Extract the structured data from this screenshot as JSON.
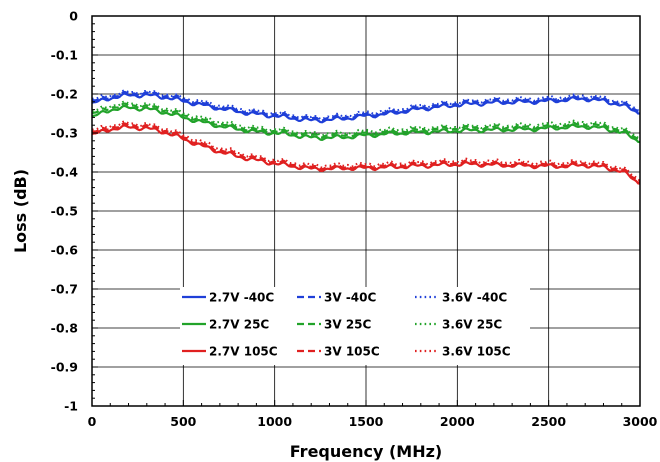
{
  "chart_data": {
    "type": "line",
    "xlabel": "Frequency (MHz)",
    "ylabel": "Loss (dB)",
    "xlim": [
      0,
      3000
    ],
    "ylim": [
      -1,
      0
    ],
    "xticks": [
      0,
      500,
      1000,
      1500,
      2000,
      2500,
      3000
    ],
    "yticks": [
      0,
      -0.1,
      -0.2,
      -0.3,
      -0.4,
      -0.5,
      -0.6,
      -0.7,
      -0.8,
      -0.9,
      -1
    ],
    "ytick_labels": [
      "0",
      "-0.1",
      "-0.2",
      "-0.3",
      "-0.4",
      "-0.5",
      "-0.6",
      "-0.7",
      "-0.8",
      "-0.9",
      "-1"
    ],
    "grid": true,
    "legend_position": "lower-center",
    "x": [
      0,
      100,
      200,
      300,
      400,
      500,
      600,
      700,
      800,
      900,
      1000,
      1100,
      1200,
      1300,
      1400,
      1500,
      1600,
      1700,
      1800,
      1900,
      2000,
      2100,
      2200,
      2300,
      2400,
      2500,
      2600,
      2700,
      2800,
      2900,
      3000
    ],
    "series": [
      {
        "name": "2.7V -40C",
        "color": "#1f3fd8",
        "dash": "solid",
        "values": [
          -0.225,
          -0.21,
          -0.203,
          -0.203,
          -0.208,
          -0.218,
          -0.228,
          -0.237,
          -0.245,
          -0.252,
          -0.256,
          -0.262,
          -0.268,
          -0.266,
          -0.262,
          -0.256,
          -0.252,
          -0.245,
          -0.238,
          -0.233,
          -0.228,
          -0.225,
          -0.222,
          -0.221,
          -0.22,
          -0.218,
          -0.215,
          -0.212,
          -0.218,
          -0.228,
          -0.25
        ]
      },
      {
        "name": "3V -40C",
        "color": "#1f3fd8",
        "dash": "dash",
        "values": [
          -0.22,
          -0.206,
          -0.199,
          -0.199,
          -0.204,
          -0.214,
          -0.224,
          -0.233,
          -0.241,
          -0.248,
          -0.252,
          -0.258,
          -0.264,
          -0.262,
          -0.258,
          -0.252,
          -0.248,
          -0.241,
          -0.234,
          -0.229,
          -0.224,
          -0.221,
          -0.218,
          -0.217,
          -0.216,
          -0.214,
          -0.211,
          -0.208,
          -0.214,
          -0.224,
          -0.246
        ]
      },
      {
        "name": "3.6V -40C",
        "color": "#1f3fd8",
        "dash": "dot",
        "values": [
          -0.215,
          -0.202,
          -0.195,
          -0.195,
          -0.2,
          -0.21,
          -0.22,
          -0.229,
          -0.237,
          -0.244,
          -0.248,
          -0.254,
          -0.26,
          -0.258,
          -0.254,
          -0.248,
          -0.244,
          -0.237,
          -0.23,
          -0.225,
          -0.22,
          -0.217,
          -0.214,
          -0.213,
          -0.212,
          -0.21,
          -0.207,
          -0.204,
          -0.21,
          -0.22,
          -0.242
        ]
      },
      {
        "name": "2.7V 25C",
        "color": "#22a32a",
        "dash": "solid",
        "values": [
          -0.26,
          -0.24,
          -0.235,
          -0.238,
          -0.247,
          -0.26,
          -0.272,
          -0.282,
          -0.29,
          -0.297,
          -0.3,
          -0.305,
          -0.312,
          -0.312,
          -0.31,
          -0.306,
          -0.303,
          -0.3,
          -0.298,
          -0.296,
          -0.294,
          -0.293,
          -0.292,
          -0.291,
          -0.29,
          -0.288,
          -0.285,
          -0.283,
          -0.288,
          -0.298,
          -0.323
        ]
      },
      {
        "name": "3V 25C",
        "color": "#22a32a",
        "dash": "dash",
        "values": [
          -0.252,
          -0.234,
          -0.229,
          -0.232,
          -0.241,
          -0.254,
          -0.266,
          -0.276,
          -0.285,
          -0.292,
          -0.295,
          -0.3,
          -0.306,
          -0.306,
          -0.304,
          -0.3,
          -0.297,
          -0.294,
          -0.292,
          -0.29,
          -0.288,
          -0.287,
          -0.286,
          -0.285,
          -0.284,
          -0.282,
          -0.279,
          -0.277,
          -0.282,
          -0.293,
          -0.318
        ]
      },
      {
        "name": "3.6V 25C",
        "color": "#22a32a",
        "dash": "dot",
        "values": [
          -0.246,
          -0.229,
          -0.224,
          -0.227,
          -0.236,
          -0.249,
          -0.261,
          -0.271,
          -0.28,
          -0.287,
          -0.29,
          -0.295,
          -0.301,
          -0.301,
          -0.299,
          -0.295,
          -0.292,
          -0.289,
          -0.287,
          -0.285,
          -0.283,
          -0.282,
          -0.281,
          -0.28,
          -0.279,
          -0.277,
          -0.274,
          -0.272,
          -0.277,
          -0.288,
          -0.313
        ]
      },
      {
        "name": "2.7V 105C",
        "color": "#e02020",
        "dash": "solid",
        "values": [
          -0.305,
          -0.29,
          -0.285,
          -0.288,
          -0.298,
          -0.315,
          -0.333,
          -0.348,
          -0.36,
          -0.37,
          -0.378,
          -0.385,
          -0.392,
          -0.392,
          -0.39,
          -0.39,
          -0.388,
          -0.386,
          -0.384,
          -0.382,
          -0.38,
          -0.38,
          -0.382,
          -0.383,
          -0.384,
          -0.385,
          -0.385,
          -0.382,
          -0.388,
          -0.398,
          -0.43
        ]
      },
      {
        "name": "3V 105C",
        "color": "#e02020",
        "dash": "dash",
        "values": [
          -0.3,
          -0.285,
          -0.28,
          -0.283,
          -0.293,
          -0.31,
          -0.328,
          -0.343,
          -0.355,
          -0.366,
          -0.374,
          -0.381,
          -0.388,
          -0.388,
          -0.386,
          -0.386,
          -0.384,
          -0.382,
          -0.38,
          -0.378,
          -0.376,
          -0.376,
          -0.378,
          -0.379,
          -0.38,
          -0.381,
          -0.381,
          -0.378,
          -0.384,
          -0.394,
          -0.426
        ]
      },
      {
        "name": "3.6V 105C",
        "color": "#e02020",
        "dash": "dot",
        "values": [
          -0.294,
          -0.28,
          -0.275,
          -0.278,
          -0.288,
          -0.305,
          -0.323,
          -0.338,
          -0.35,
          -0.361,
          -0.369,
          -0.376,
          -0.383,
          -0.383,
          -0.381,
          -0.381,
          -0.379,
          -0.377,
          -0.375,
          -0.373,
          -0.371,
          -0.371,
          -0.373,
          -0.374,
          -0.375,
          -0.376,
          -0.376,
          -0.373,
          -0.379,
          -0.389,
          -0.421
        ]
      }
    ]
  }
}
